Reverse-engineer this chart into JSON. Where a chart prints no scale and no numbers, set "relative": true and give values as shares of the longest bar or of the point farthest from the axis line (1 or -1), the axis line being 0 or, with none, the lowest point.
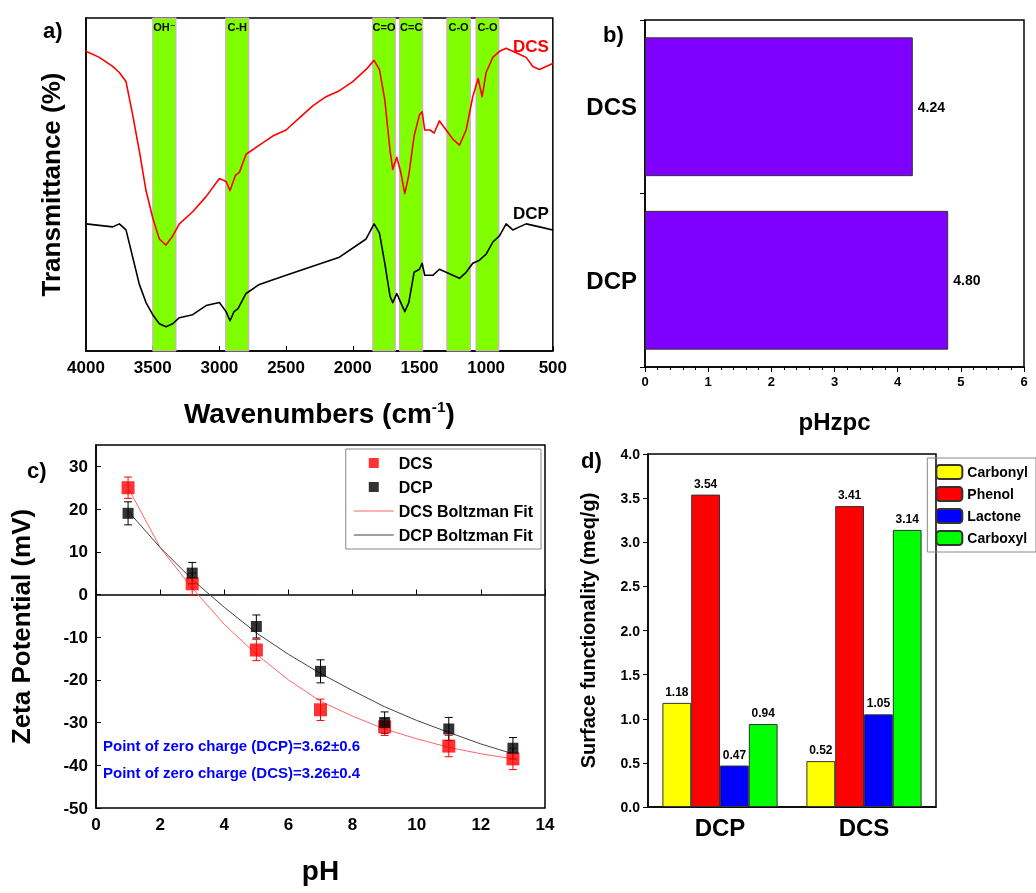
{
  "chart_data": [
    {
      "type": "line",
      "title": "a)",
      "xlabel": "Wavenumbers (cm$^{-1}$)",
      "ylabel": "Transmittance (%)",
      "relative": true,
      "marker": "none",
      "line_style": "solid",
      "xlim": [
        4000,
        500
      ],
      "xticks": [
        4000,
        3500,
        3000,
        2500,
        2000,
        1500,
        1000,
        500
      ],
      "bands": [
        {
          "axis": "x",
          "from": 3500,
          "to": 3325,
          "label": "OH⁻",
          "color": "#7fff00"
        },
        {
          "axis": "x",
          "from": 2953,
          "to": 2779,
          "label": "C-H",
          "color": "#7fff00"
        },
        {
          "axis": "x",
          "from": 1850,
          "to": 1681,
          "label": "C=O",
          "color": "#7fff00"
        },
        {
          "axis": "x",
          "from": 1649,
          "to": 1475,
          "label": "C=C",
          "color": "#7fff00"
        },
        {
          "axis": "x",
          "from": 1295,
          "to": 1118,
          "label": "C-O",
          "color": "#7fff00"
        },
        {
          "axis": "x",
          "from": 1076,
          "to": 904,
          "label": "C-O",
          "color": "#7fff00"
        }
      ],
      "series": [
        {
          "name": "DCS",
          "color": "#ff0000",
          "x": [
            4000,
            3900,
            3800,
            3750,
            3700,
            3650,
            3600,
            3550,
            3500,
            3450,
            3400,
            3350,
            3300,
            3200,
            3100,
            3000,
            2950,
            2920,
            2880,
            2850,
            2800,
            2700,
            2600,
            2500,
            2400,
            2300,
            2200,
            2100,
            2000,
            1900,
            1840,
            1800,
            1760,
            1720,
            1700,
            1670,
            1640,
            1610,
            1580,
            1540,
            1500,
            1480,
            1460,
            1420,
            1390,
            1350,
            1300,
            1250,
            1200,
            1150,
            1100,
            1060,
            1030,
            1000,
            950,
            900,
            850,
            800,
            750,
            700,
            650,
            600,
            500
          ],
          "values": [
            0.99,
            0.97,
            0.94,
            0.92,
            0.89,
            0.78,
            0.66,
            0.53,
            0.44,
            0.37,
            0.35,
            0.38,
            0.42,
            0.46,
            0.51,
            0.57,
            0.56,
            0.53,
            0.58,
            0.59,
            0.65,
            0.68,
            0.71,
            0.73,
            0.77,
            0.81,
            0.84,
            0.86,
            0.89,
            0.93,
            0.96,
            0.93,
            0.83,
            0.66,
            0.6,
            0.64,
            0.59,
            0.52,
            0.58,
            0.71,
            0.78,
            0.79,
            0.73,
            0.73,
            0.72,
            0.76,
            0.73,
            0.7,
            0.68,
            0.73,
            0.84,
            0.9,
            0.84,
            0.92,
            0.97,
            0.99,
            1,
            0.99,
            0.98,
            0.97,
            0.94,
            0.93,
            0.95
          ]
        },
        {
          "name": "DCP",
          "color": "#000000",
          "x": [
            4000,
            3800,
            3750,
            3700,
            3650,
            3600,
            3550,
            3500,
            3450,
            3400,
            3350,
            3300,
            3200,
            3100,
            3000,
            2950,
            2920,
            2890,
            2860,
            2800,
            2700,
            2500,
            2300,
            2100,
            1900,
            1840,
            1800,
            1760,
            1720,
            1700,
            1670,
            1640,
            1610,
            1580,
            1540,
            1500,
            1480,
            1460,
            1400,
            1350,
            1300,
            1250,
            1200,
            1150,
            1100,
            1050,
            1000,
            950,
            900,
            850,
            800,
            750,
            700,
            600,
            500
          ],
          "values": [
            0.42,
            0.41,
            0.42,
            0.4,
            0.31,
            0.22,
            0.16,
            0.12,
            0.09,
            0.08,
            0.09,
            0.11,
            0.12,
            0.15,
            0.16,
            0.13,
            0.1,
            0.13,
            0.14,
            0.19,
            0.22,
            0.25,
            0.28,
            0.31,
            0.37,
            0.42,
            0.39,
            0.29,
            0.18,
            0.16,
            0.19,
            0.16,
            0.13,
            0.16,
            0.26,
            0.27,
            0.29,
            0.25,
            0.25,
            0.27,
            0.26,
            0.25,
            0.24,
            0.26,
            0.29,
            0.3,
            0.32,
            0.36,
            0.38,
            0.42,
            0.4,
            0.41,
            0.42,
            0.41,
            0.4
          ]
        }
      ]
    },
    {
      "type": "bar",
      "title": "b)",
      "xlabel": "pHzpc",
      "orientation": "horizontal",
      "categories": [
        "DCS",
        "DCP"
      ],
      "xlim": [
        0,
        6
      ],
      "xticks": [
        0,
        1,
        2,
        3,
        4,
        5,
        6
      ],
      "series": [
        {
          "color": "#8000ff",
          "values": [
            4.24,
            4.8
          ],
          "value_labels": [
            "4.24",
            "4.80"
          ]
        }
      ]
    },
    {
      "type": "scatter",
      "title": "c)",
      "xlabel": "pH",
      "ylabel": "Zeta Potential (mV)",
      "legend": "top right",
      "xlim": [
        0,
        14
      ],
      "xticks": [
        0,
        2,
        4,
        6,
        8,
        10,
        12,
        14
      ],
      "ylim": [
        -50,
        35
      ],
      "yticks": [
        -50,
        -40,
        -30,
        -20,
        -10,
        0,
        10,
        20,
        30
      ],
      "annotations": [
        "Point of zero charge (DCP)=3.62±0.6",
        "Point of zero charge (DCS)=3.26±0.4"
      ],
      "series": [
        {
          "name": "DCS",
          "type": "scatter",
          "marker": "square",
          "color": "#ff0000",
          "x": [
            1,
            3,
            5,
            7,
            9,
            11,
            13
          ],
          "values": [
            25,
            2.5,
            -13,
            -27,
            -31,
            -35.5,
            -38.5
          ],
          "errors": [
            2.5,
            2.5,
            2.5,
            2.5,
            2,
            2.5,
            2.5
          ]
        },
        {
          "name": "DCP",
          "type": "scatter",
          "marker": "square",
          "color": "#000000",
          "x": [
            1,
            3,
            5,
            7,
            9,
            11,
            13
          ],
          "values": [
            19,
            5,
            -7.5,
            -18,
            -30,
            -31.5,
            -36
          ],
          "errors": [
            2.7,
            2.5,
            2.7,
            2.7,
            2.5,
            2.7,
            2.5
          ]
        },
        {
          "name": "DCS Boltzman Fit",
          "type": "line",
          "marker": "none",
          "line_style": "solid",
          "color": "#ff6666",
          "x": [
            1,
            2,
            3,
            4,
            5,
            6,
            7,
            8,
            9,
            10,
            11,
            12,
            13
          ],
          "values": [
            25,
            11,
            1.5,
            -7,
            -14,
            -20,
            -25,
            -28.5,
            -31.5,
            -33.8,
            -35.8,
            -37.3,
            -38.5
          ]
        },
        {
          "name": "DCP Boltzman Fit",
          "type": "line",
          "marker": "none",
          "line_style": "solid",
          "color": "#444444",
          "x": [
            1,
            2,
            3,
            4,
            5,
            6,
            7,
            8,
            9,
            10,
            11,
            12,
            13
          ],
          "values": [
            19.5,
            11,
            3.5,
            -3,
            -9,
            -14,
            -18.5,
            -22.5,
            -26.3,
            -29.5,
            -32.3,
            -35,
            -37.3
          ]
        }
      ]
    },
    {
      "type": "bar",
      "title": "d)",
      "ylabel": "Surface functionality (meq/g)",
      "legend": "top right",
      "data_labels": true,
      "categories": [
        "DCP",
        "DCS"
      ],
      "ylim": [
        0,
        4
      ],
      "yticks": [
        {
          "value": 0,
          "label": "0.0"
        },
        {
          "value": 0.5,
          "label": "0.5"
        },
        {
          "value": 1,
          "label": "1.0"
        },
        {
          "value": 1.5,
          "label": "1.5"
        },
        {
          "value": 2,
          "label": "2.0"
        },
        {
          "value": 2.5,
          "label": "2.5"
        },
        {
          "value": 3,
          "label": "3.0"
        },
        {
          "value": 3.5,
          "label": "3.5"
        },
        {
          "value": 4,
          "label": "4.0"
        }
      ],
      "series": [
        {
          "name": "Carbonyl",
          "color": "#ffff00",
          "values": [
            1.18,
            0.52
          ]
        },
        {
          "name": "Phenol",
          "color": "#ff0000",
          "values": [
            3.54,
            3.41
          ]
        },
        {
          "name": "Lactone",
          "color": "#0000ff",
          "values": [
            0.47,
            1.05
          ]
        },
        {
          "name": "Carboxyl",
          "color": "#00ff00",
          "values": [
            0.94,
            3.14
          ]
        }
      ]
    }
  ]
}
